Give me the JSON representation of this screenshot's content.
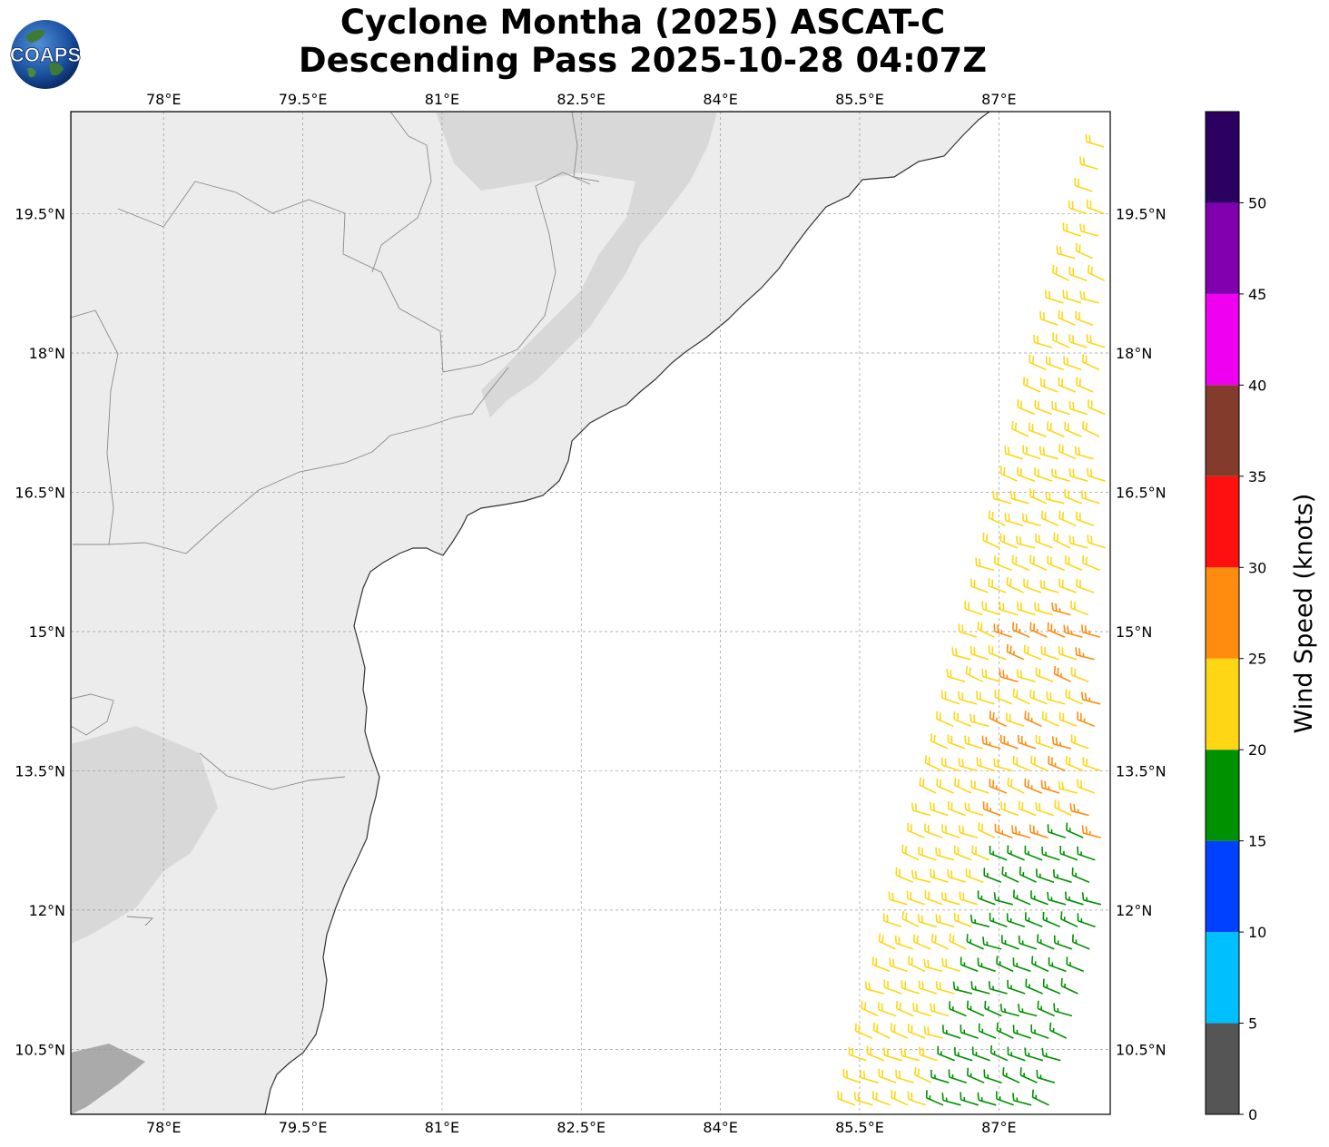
{
  "header": {
    "title_line1": "Cyclone Montha (2025) ASCAT-C",
    "title_line2": "Descending Pass 2025-10-28 04:07Z",
    "logo_text": "COAPS"
  },
  "map": {
    "lon_labels": [
      "78°E",
      "79.5°E",
      "81°E",
      "82.5°E",
      "84°E",
      "85.5°E",
      "87°E"
    ],
    "lat_labels": [
      "19.5°N",
      "18°N",
      "16.5°N",
      "15°N",
      "13.5°N",
      "12°N",
      "10.5°N"
    ],
    "lon_range": [
      77.0,
      88.2
    ],
    "lat_range": [
      9.8,
      20.6
    ],
    "land_color": "#ececec",
    "ocean_color": "#ffffff"
  },
  "colorbar": {
    "label": "Wind Speed (knots)",
    "ticks": [
      "0",
      "5",
      "10",
      "15",
      "20",
      "25",
      "30",
      "35",
      "40",
      "45",
      "50"
    ],
    "bins": [
      {
        "min": 0,
        "max": 5,
        "color": "#555555"
      },
      {
        "min": 5,
        "max": 10,
        "color": "#00bfff"
      },
      {
        "min": 10,
        "max": 15,
        "color": "#0040ff"
      },
      {
        "min": 15,
        "max": 20,
        "color": "#009100"
      },
      {
        "min": 20,
        "max": 25,
        "color": "#ffd614"
      },
      {
        "min": 25,
        "max": 30,
        "color": "#ff8c0f"
      },
      {
        "min": 30,
        "max": 35,
        "color": "#ff1010"
      },
      {
        "min": 35,
        "max": 40,
        "color": "#833b2b"
      },
      {
        "min": 40,
        "max": 45,
        "color": "#f000f0"
      },
      {
        "min": 45,
        "max": 50,
        "color": "#8000b0"
      },
      {
        "min": 50,
        "max": 55,
        "color": "#2c0060"
      }
    ]
  },
  "chart_data": {
    "type": "wind barbs (map)",
    "units": "knots",
    "swath": [
      {
        "lat": 10.5,
        "lon_range": [
          85.5,
          88.2
        ],
        "predominant_speed_kt": "15-25"
      },
      {
        "lat": 12.0,
        "lon_range": [
          85.8,
          88.2
        ],
        "predominant_speed_kt": "15-25"
      },
      {
        "lat": 13.5,
        "lon_range": [
          86.3,
          88.2
        ],
        "predominant_speed_kt": "20-30"
      },
      {
        "lat": 14.5,
        "lon_range": [
          86.8,
          88.2
        ],
        "predominant_speed_kt": "20-30"
      },
      {
        "lat": 16.5,
        "lon_range": [
          87.2,
          88.2
        ],
        "predominant_speed_kt": "15-25"
      },
      {
        "lat": 18.0,
        "lon_range": [
          87.6,
          88.2
        ],
        "predominant_speed_kt": "15-25"
      },
      {
        "lat": 19.5,
        "lon_range": [
          88.0,
          88.2
        ],
        "predominant_speed_kt": "20-25"
      }
    ]
  }
}
